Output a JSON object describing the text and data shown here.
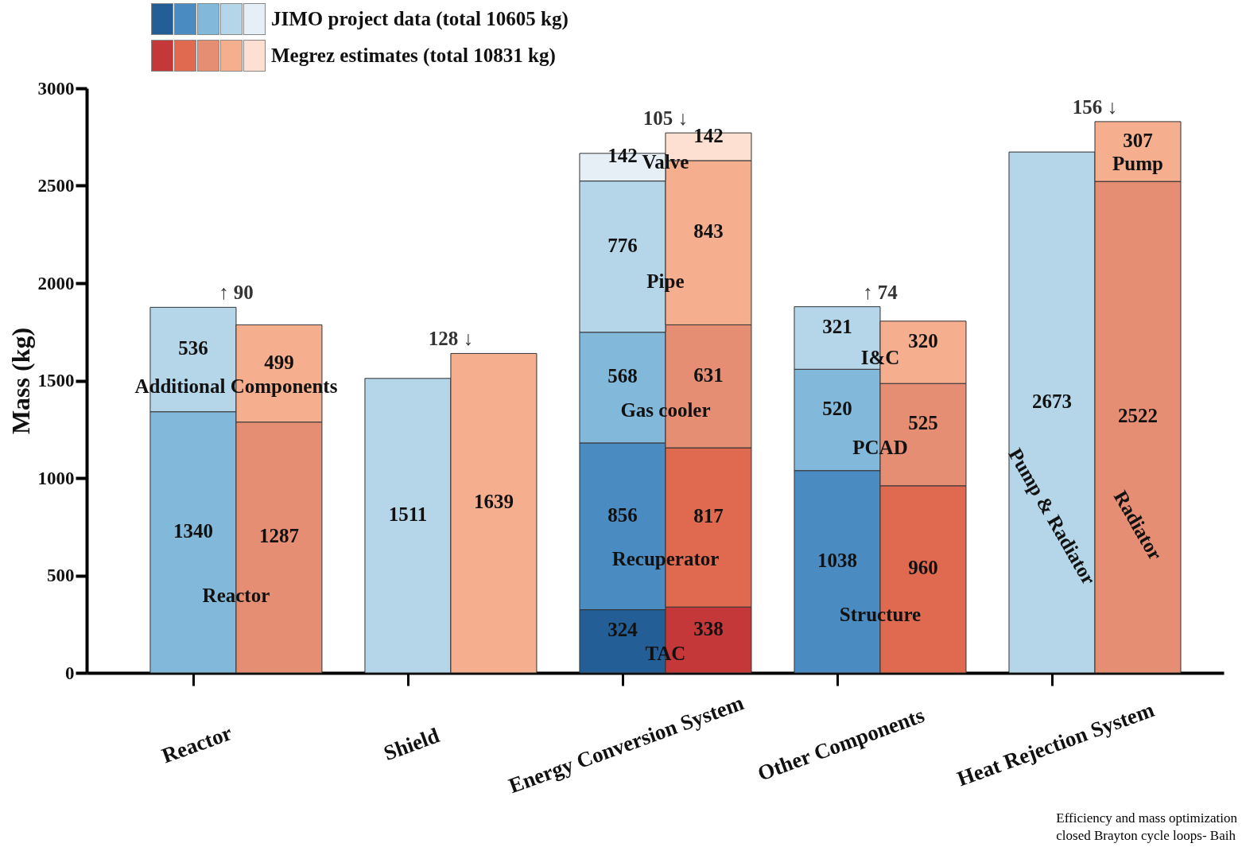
{
  "chart_data": {
    "type": "bar",
    "stacked": true,
    "ylabel": "Mass (kg)",
    "categories": [
      "Reactor",
      null,
      "Shield",
      null,
      "Energy Conversion System",
      null,
      "Other Components",
      null,
      "Heat Rejection System",
      null
    ],
    "ylim": [
      0,
      3000
    ],
    "yticks": [
      0,
      500,
      1000,
      1500,
      2000,
      2500,
      3000
    ],
    "grid": false,
    "data_labels": true,
    "series": [
      {
        "name": "Reactor",
        "values": [
          1340,
          1287,
          null,
          null,
          null,
          null,
          null,
          null,
          null,
          null
        ],
        "colors": [
          "#82b8d9",
          "#e58e74",
          null,
          null,
          null,
          null,
          null,
          null,
          null,
          null
        ]
      },
      {
        "name": "Additional Components",
        "values": [
          536,
          499,
          null,
          null,
          null,
          null,
          null,
          null,
          null,
          null
        ],
        "colors": [
          "#b5d5e8",
          "#f5ae8e",
          null,
          null,
          null,
          null,
          null,
          null,
          null,
          null
        ]
      },
      {
        "values": [
          null,
          null,
          1511,
          1639,
          null,
          null,
          null,
          null,
          null,
          null
        ],
        "colors": [
          null,
          null,
          "#b5d5e8",
          "#f5ae8e",
          null,
          null,
          null,
          null,
          null,
          null
        ]
      },
      {
        "name": "TAC",
        "values": [
          null,
          null,
          null,
          null,
          324,
          338,
          null,
          null,
          null,
          null
        ],
        "colors": [
          null,
          null,
          null,
          null,
          "#235e96",
          "#c4383a",
          null,
          null,
          null,
          null
        ]
      },
      {
        "name": "Recuperator",
        "values": [
          null,
          null,
          null,
          null,
          856,
          817,
          null,
          null,
          null,
          null
        ],
        "colors": [
          null,
          null,
          null,
          null,
          "#4a8cc2",
          "#e06a50",
          null,
          null,
          null,
          null
        ]
      },
      {
        "name": "Gas cooler",
        "values": [
          null,
          null,
          null,
          null,
          568,
          631,
          null,
          null,
          null,
          null
        ],
        "colors": [
          null,
          null,
          null,
          null,
          "#82b8d9",
          "#e58e74",
          null,
          null,
          null,
          null
        ]
      },
      {
        "name": "Pipe",
        "values": [
          null,
          null,
          null,
          null,
          776,
          843,
          null,
          null,
          null,
          null
        ],
        "colors": [
          null,
          null,
          null,
          null,
          "#b5d5e8",
          "#f5ae8e",
          null,
          null,
          null,
          null
        ]
      },
      {
        "name": "Valve",
        "values": [
          null,
          null,
          null,
          null,
          142,
          142,
          null,
          null,
          null,
          null
        ],
        "colors": [
          null,
          null,
          null,
          null,
          "#e5eff5",
          "#fde0d2",
          null,
          null,
          null,
          null
        ]
      },
      {
        "name": "Structure",
        "values": [
          null,
          null,
          null,
          null,
          null,
          null,
          1038,
          960,
          null,
          null
        ],
        "colors": [
          null,
          null,
          null,
          null,
          null,
          null,
          "#4a8cc2",
          "#e06a50",
          null,
          null
        ]
      },
      {
        "name": "PCAD",
        "values": [
          null,
          null,
          null,
          null,
          null,
          null,
          520,
          525,
          null,
          null
        ],
        "colors": [
          null,
          null,
          null,
          null,
          null,
          null,
          "#82b8d9",
          "#e58e74",
          null,
          null
        ]
      },
      {
        "name": "I&C",
        "values": [
          null,
          null,
          null,
          null,
          null,
          null,
          321,
          320,
          null,
          null
        ],
        "colors": [
          null,
          null,
          null,
          null,
          null,
          null,
          "#b5d5e8",
          "#f5ae8e",
          null,
          null
        ]
      },
      {
        "name": "Pump & Radiator",
        "values": [
          null,
          null,
          null,
          null,
          null,
          null,
          null,
          null,
          2673,
          null
        ],
        "colors": [
          null,
          null,
          null,
          null,
          null,
          null,
          null,
          null,
          "#b5d5e8",
          null
        ]
      },
      {
        "name": "Radiator",
        "values": [
          null,
          null,
          null,
          null,
          null,
          null,
          null,
          null,
          null,
          2522
        ],
        "colors": [
          null,
          null,
          null,
          null,
          null,
          null,
          null,
          null,
          null,
          "#e58e74"
        ]
      },
      {
        "name": "Pump",
        "values": [
          null,
          null,
          null,
          null,
          null,
          null,
          null,
          null,
          null,
          307
        ],
        "colors": [
          null,
          null,
          null,
          null,
          null,
          null,
          null,
          null,
          null,
          "#f5ae8e"
        ]
      }
    ],
    "annotations": [
      "JIMO project data (total 10605 kg)",
      "Megrez estimates (total 10831 kg)",
      {
        "text": "↑ 90",
        "x": "Reactor",
        "y": 1876
      },
      {
        "text": "128 ↓",
        "x": "Shield",
        "y": 1511
      },
      {
        "text": "105 ↓",
        "x": "Energy Conversion System",
        "y": 2666
      },
      {
        "text": "↑ 74",
        "x": "Other Components",
        "y": 1879
      },
      {
        "text": "156 ↓",
        "x": "Heat Rejection System",
        "y": 2673
      },
      "Efficiency and mass optimization",
      "closed Brayton cycle loops- Baih"
    ]
  }
}
